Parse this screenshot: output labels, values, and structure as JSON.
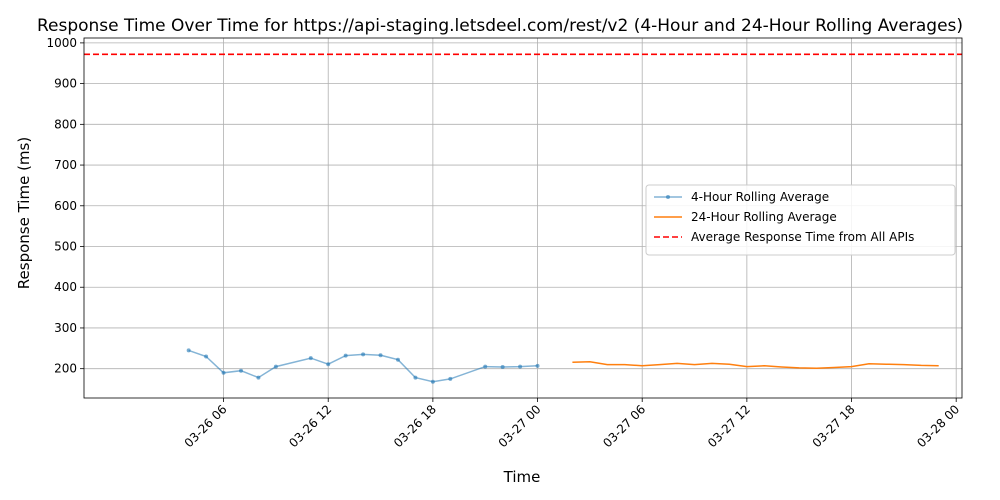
{
  "chart_data": {
    "type": "line",
    "title": "Response Time Over Time for https://api-staging.letsdeel.com/rest/v2 (4-Hour and 24-Hour Rolling Averages)",
    "xlabel": "Time",
    "ylabel": "Response Time (ms)",
    "x_ticks": [
      "03-26 06",
      "03-26 12",
      "03-26 18",
      "03-27 00",
      "03-27 06",
      "03-27 12",
      "03-27 18",
      "03-28 00"
    ],
    "y_ticks": [
      200,
      300,
      400,
      500,
      600,
      700,
      800,
      900,
      1000
    ],
    "ylim": [
      128,
      1012
    ],
    "xlim": [
      "2024-03-25 22:00",
      "2024-03-28 00:20"
    ],
    "grid": true,
    "legend_position": "center-right",
    "series": [
      {
        "name": "4-Hour Rolling Average",
        "color": "#1f77b4",
        "style": "line-with-markers",
        "points": [
          [
            "2024-03-26 04:00",
            245
          ],
          [
            "2024-03-26 05:00",
            230
          ],
          [
            "2024-03-26 06:00",
            190
          ],
          [
            "2024-03-26 07:00",
            195
          ],
          [
            "2024-03-26 08:00",
            178
          ],
          [
            "2024-03-26 09:00",
            205
          ],
          [
            "2024-03-26 11:00",
            226
          ],
          [
            "2024-03-26 12:00",
            211
          ],
          [
            "2024-03-26 13:00",
            232
          ],
          [
            "2024-03-26 14:00",
            235
          ],
          [
            "2024-03-26 15:00",
            233
          ],
          [
            "2024-03-26 16:00",
            222
          ],
          [
            "2024-03-26 17:00",
            178
          ],
          [
            "2024-03-26 18:00",
            168
          ],
          [
            "2024-03-26 19:00",
            175
          ],
          [
            "2024-03-26 23:00",
            205
          ],
          [
            "2024-03-27 00:00",
            207
          ]
        ],
        "points_more": [
          [
            "2024-03-26 22:00",
            204
          ],
          [
            "2024-03-26 21:00",
            205
          ]
        ]
      },
      {
        "name": "24-Hour Rolling Average",
        "color": "#ff7f0e",
        "style": "line",
        "points": [
          [
            "2024-03-27 02:00",
            216
          ],
          [
            "2024-03-27 03:00",
            217
          ],
          [
            "2024-03-27 04:00",
            210
          ],
          [
            "2024-03-27 05:00",
            210
          ],
          [
            "2024-03-27 06:00",
            207
          ],
          [
            "2024-03-27 07:00",
            210
          ],
          [
            "2024-03-27 08:00",
            213
          ],
          [
            "2024-03-27 09:00",
            210
          ],
          [
            "2024-03-27 10:00",
            213
          ],
          [
            "2024-03-27 11:00",
            211
          ],
          [
            "2024-03-27 12:00",
            205
          ],
          [
            "2024-03-27 13:00",
            207
          ],
          [
            "2024-03-27 14:00",
            204
          ],
          [
            "2024-03-27 15:00",
            202
          ],
          [
            "2024-03-27 16:00",
            201
          ],
          [
            "2024-03-27 17:00",
            203
          ],
          [
            "2024-03-27 18:00",
            205
          ],
          [
            "2024-03-27 19:00",
            212
          ],
          [
            "2024-03-27 20:00",
            211
          ],
          [
            "2024-03-27 21:00",
            210
          ],
          [
            "2024-03-27 22:00",
            208
          ],
          [
            "2024-03-27 23:00",
            207
          ]
        ]
      },
      {
        "name": "Average Response Time from All APIs",
        "color": "#ff0000",
        "style": "dashed-horizontal",
        "value": 972
      }
    ]
  }
}
